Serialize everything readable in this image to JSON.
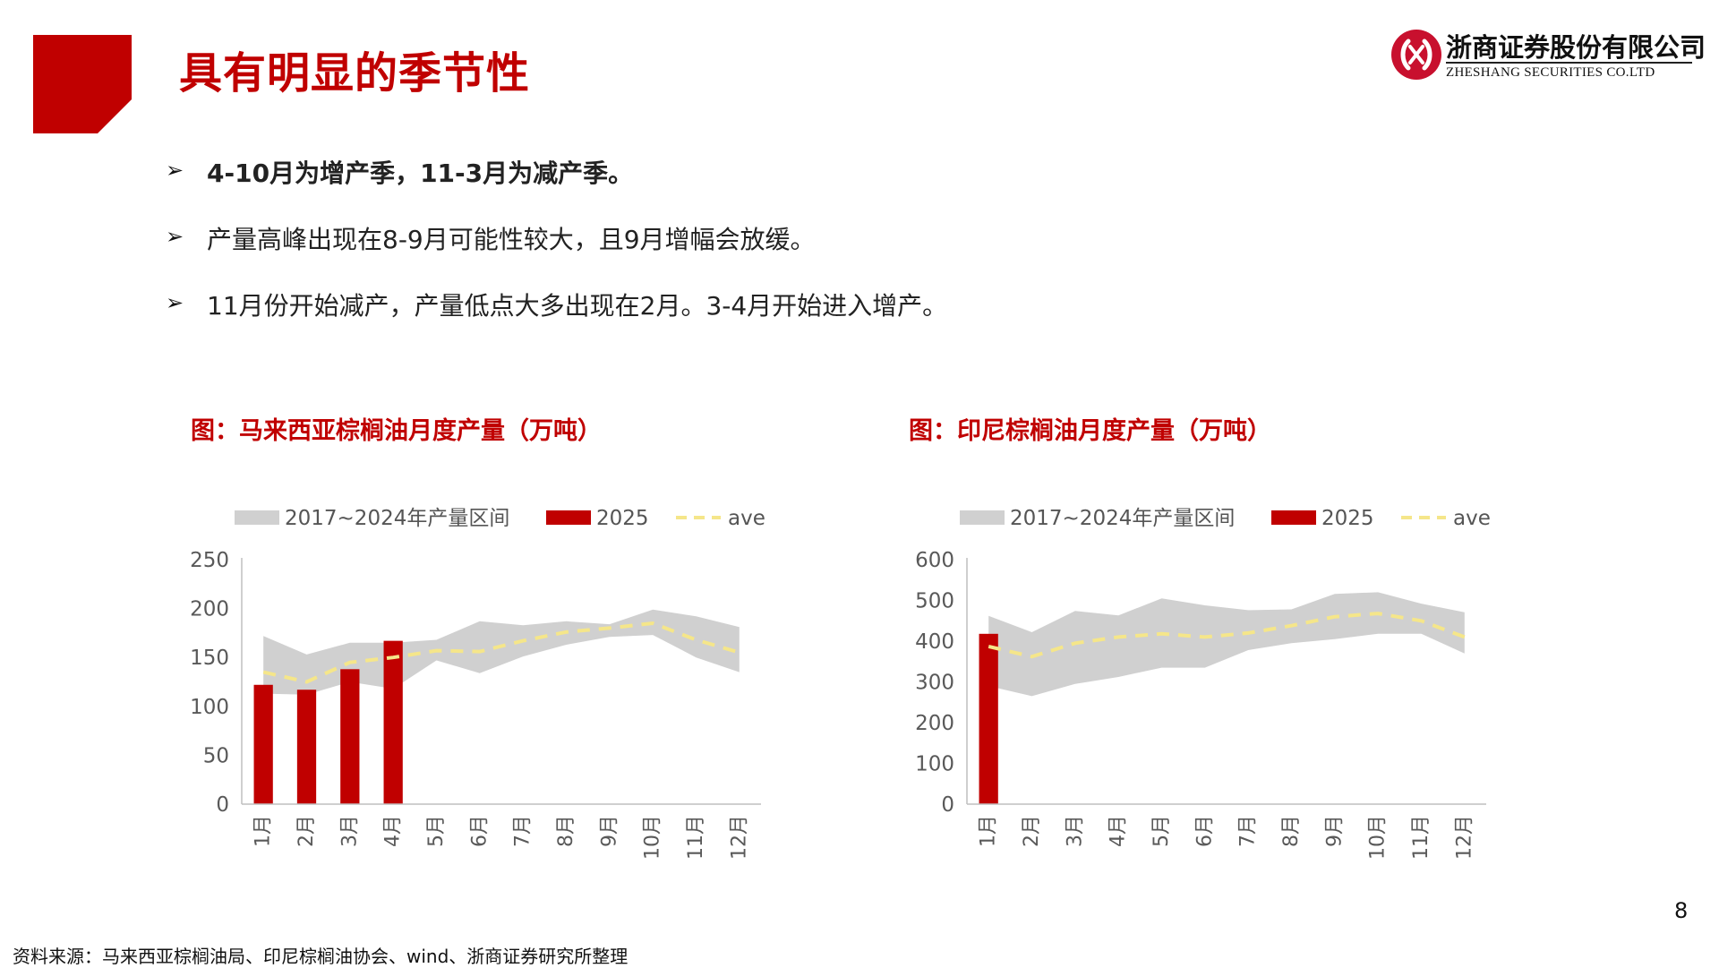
{
  "header": {
    "title": "具有明显的季节性",
    "logo_cn": "浙商证券股份有限公司",
    "logo_en": "ZHESHANG SECURITIES CO.LTD"
  },
  "bullets": [
    {
      "mark": "➢",
      "text": "4-10月为增产季，11-3月为减产季。",
      "bold": true
    },
    {
      "mark": "➢",
      "text": "产量高峰出现在8-9月可能性较大，且9月增幅会放缓。",
      "bold": false
    },
    {
      "mark": "➢",
      "text": "11月份开始减产，产量低点大多出现在2月。3-4月开始进入增产。",
      "bold": false
    }
  ],
  "colors": {
    "brand_red": "#c00000",
    "band_gray": "#d0d0d0",
    "ave_yellow": "#f5e68a"
  },
  "chart_data": [
    {
      "type": "bar",
      "title": "图：马来西亚棕榈油月度产量（万吨）",
      "categories": [
        "1月",
        "2月",
        "3月",
        "4月",
        "5月",
        "6月",
        "7月",
        "8月",
        "9月",
        "10月",
        "11月",
        "12月"
      ],
      "legend": [
        "2017~2024年产量区间",
        "2025",
        "ave"
      ],
      "legend_position": "top",
      "ylim": [
        0,
        250
      ],
      "yticks": [
        0,
        50,
        100,
        150,
        200,
        250
      ],
      "grid": false,
      "series": [
        {
          "name": "2017~2024年产量区间",
          "kind": "area-range",
          "low": [
            113,
            112,
            125,
            118,
            147,
            134,
            151,
            163,
            171,
            173,
            150,
            135
          ],
          "high": [
            172,
            153,
            165,
            165,
            168,
            187,
            183,
            187,
            184,
            199,
            192,
            181
          ]
        },
        {
          "name": "2025",
          "kind": "bar",
          "values": [
            122,
            117,
            138,
            167,
            null,
            null,
            null,
            null,
            null,
            null,
            null,
            null
          ]
        },
        {
          "name": "ave",
          "kind": "dashed-line",
          "values": [
            135,
            125,
            145,
            150,
            157,
            156,
            167,
            176,
            180,
            185,
            168,
            155
          ]
        }
      ]
    },
    {
      "type": "bar",
      "title": "图：印尼棕榈油月度产量（万吨）",
      "categories": [
        "1月",
        "2月",
        "3月",
        "4月",
        "5月",
        "6月",
        "7月",
        "8月",
        "9月",
        "10月",
        "11月",
        "12月"
      ],
      "legend": [
        "2017~2024年产量区间",
        "2025",
        "ave"
      ],
      "legend_position": "top",
      "ylim": [
        0,
        600
      ],
      "yticks": [
        0,
        100,
        200,
        300,
        400,
        500,
        600
      ],
      "grid": false,
      "series": [
        {
          "name": "2017~2024年产量区间",
          "kind": "area-range",
          "low": [
            290,
            265,
            295,
            312,
            335,
            335,
            378,
            395,
            405,
            418,
            418,
            370
          ],
          "high": [
            462,
            422,
            474,
            463,
            505,
            488,
            476,
            478,
            516,
            520,
            492,
            471
          ]
        },
        {
          "name": "2025",
          "kind": "bar",
          "values": [
            418,
            null,
            null,
            null,
            null,
            null,
            null,
            null,
            null,
            null,
            null,
            null
          ]
        },
        {
          "name": "ave",
          "kind": "dashed-line",
          "values": [
            387,
            362,
            395,
            410,
            418,
            410,
            420,
            438,
            460,
            468,
            450,
            410
          ]
        }
      ]
    }
  ],
  "footer": {
    "source": "资料来源：马来西亚棕榈油局、印尼棕榈油协会、wind、浙商证券研究所整理",
    "page": "8"
  }
}
